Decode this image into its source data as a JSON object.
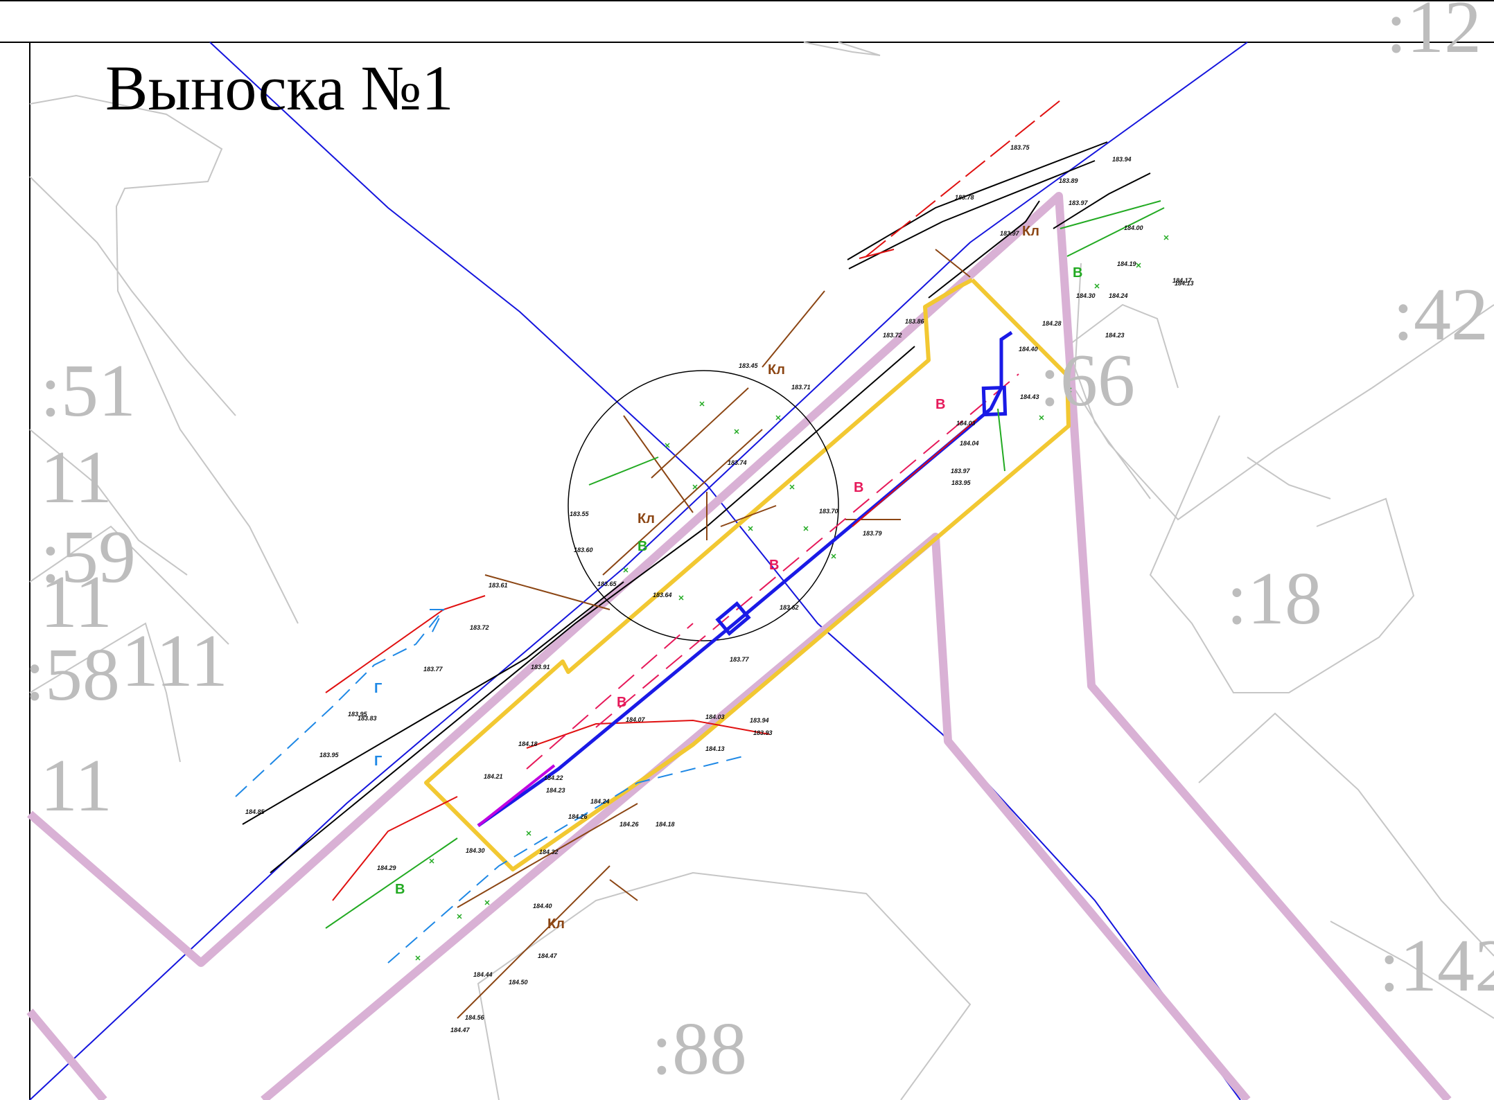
{
  "title": "Выноска №1",
  "parcels": [
    ":51",
    "11",
    ":59",
    "11",
    ":58",
    "111",
    "11",
    ":42",
    ":66",
    ":18",
    ":142",
    ":88",
    ":12"
  ],
  "network_labels": {
    "water": "В",
    "cable": "Кл",
    "gas": "Г"
  },
  "elevations": [
    "183.75",
    "183.78",
    "183.89",
    "183.94",
    "183.97",
    "184.00",
    "183.97",
    "184.19",
    "184.17",
    "184.13",
    "184.30",
    "184.24",
    "183.86",
    "184.28",
    "184.23",
    "183.72",
    "184.40",
    "183.45",
    "183.71",
    "184.43",
    "184.03",
    "184.04",
    "183.97",
    "183.95",
    "183.79",
    "183.70",
    "183.74",
    "183.55",
    "183.60",
    "183.65",
    "183.64",
    "183.61",
    "183.72",
    "183.62",
    "183.77",
    "183.91",
    "183.77",
    "183.95",
    "183.83",
    "183.95",
    "184.07",
    "184.03",
    "183.94",
    "183.93",
    "184.18",
    "184.13",
    "184.21",
    "184.22",
    "184.23",
    "184.24",
    "184.26",
    "184.26",
    "184.18",
    "184.30",
    "184.32",
    "184.29",
    "184.40",
    "184.47",
    "184.44",
    "184.50",
    "184.56",
    "184.47",
    "184.85"
  ],
  "colors": {
    "frame": "#000000",
    "parcel_boundary": "#c0c0c0",
    "zone_boundary": "#d9b2d6",
    "work_area": "#f2c832",
    "pipe": "#1a1ae6",
    "water_line": "#e6195a",
    "cable_line": "#8b4513",
    "green_line": "#22aa22",
    "dashed_blue": "#1e88e5",
    "magenta": "#d400d4",
    "red": "#e01010"
  }
}
